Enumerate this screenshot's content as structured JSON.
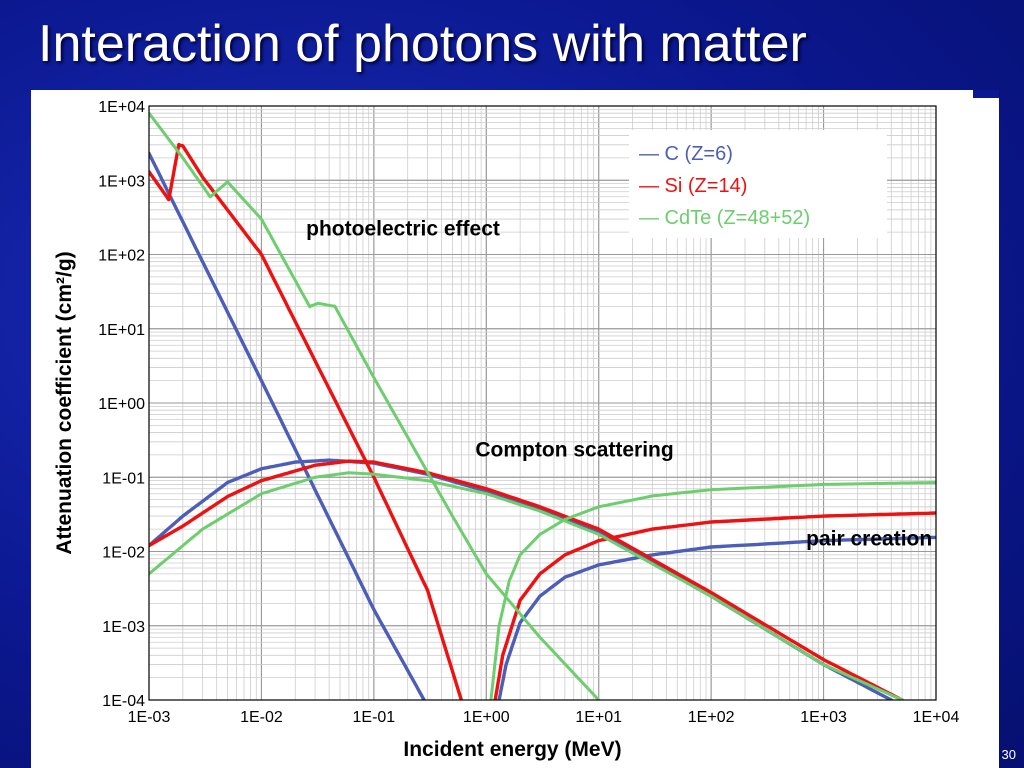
{
  "slide": {
    "title": "Interaction of photons with matter",
    "page_number": "30"
  },
  "colors": {
    "C": "#4c5eb8",
    "Si": "#ee1111",
    "CdTe": "#6cce6c"
  },
  "chart_data": {
    "type": "line",
    "title": "",
    "xlabel": "Incident energy (MeV)",
    "ylabel": "Attenuation coefficient (cm²/g)",
    "xscale": "log",
    "yscale": "log",
    "xlim": [
      0.001,
      10000
    ],
    "ylim": [
      0.0001,
      10000
    ],
    "grid": true,
    "legend_position": "top-right",
    "x_ticks": [
      "1E-03",
      "1E-02",
      "1E-01",
      "1E+00",
      "1E+01",
      "1E+02",
      "1E+03",
      "1E+04"
    ],
    "y_ticks": [
      "1E-04",
      "1E-03",
      "1E-02",
      "1E-01",
      "1E+00",
      "1E+01",
      "1E+02",
      "1E+03",
      "1E+04"
    ],
    "legend": [
      {
        "key": "C",
        "label": "— C (Z=6)"
      },
      {
        "key": "Si",
        "label": "— Si (Z=14)"
      },
      {
        "key": "CdTe",
        "label": "— CdTe (Z=48+52)"
      }
    ],
    "annotations": [
      {
        "text": "photoelectric effect",
        "x": 0.025,
        "y": 180
      },
      {
        "text": "Compton scattering",
        "x": 0.8,
        "y": 0.19
      },
      {
        "text": "pair creation",
        "x": 700,
        "y": 0.012
      }
    ],
    "series": [
      {
        "name": "C (Z=6)",
        "key": "C",
        "process": "photoelectric",
        "x": [
          0.001,
          0.01,
          0.1,
          0.28
        ],
        "y": [
          2300,
          2.0,
          0.00165,
          0.0001
        ]
      },
      {
        "name": "C (Z=6)",
        "key": "C",
        "process": "compton",
        "x": [
          0.001,
          0.002,
          0.005,
          0.01,
          0.02,
          0.04,
          0.1,
          0.3,
          1,
          3,
          10,
          100,
          1000,
          4000
        ],
        "y": [
          0.012,
          0.03,
          0.085,
          0.13,
          0.16,
          0.17,
          0.155,
          0.11,
          0.065,
          0.038,
          0.018,
          0.0025,
          0.0003,
          0.0001
        ]
      },
      {
        "name": "C (Z=6)",
        "key": "C",
        "process": "pair",
        "x": [
          1.3,
          1.5,
          2,
          3,
          5,
          10,
          30,
          100,
          1000,
          10000
        ],
        "y": [
          0.0001,
          0.0003,
          0.0011,
          0.0025,
          0.0045,
          0.0066,
          0.009,
          0.0115,
          0.014,
          0.0155
        ]
      },
      {
        "name": "Si (Z=14)",
        "key": "Si",
        "process": "photoelectric",
        "x": [
          0.001,
          0.0015,
          0.00184,
          0.002,
          0.003,
          0.01,
          0.1,
          0.3,
          0.6
        ],
        "y": [
          1300,
          550,
          3000,
          2900,
          1100,
          100,
          0.1,
          0.003,
          0.0001
        ]
      },
      {
        "name": "Si (Z=14)",
        "key": "Si",
        "process": "compton",
        "x": [
          0.001,
          0.002,
          0.005,
          0.01,
          0.03,
          0.06,
          0.1,
          0.3,
          1,
          3,
          10,
          100,
          1000,
          5000
        ],
        "y": [
          0.012,
          0.022,
          0.055,
          0.09,
          0.145,
          0.165,
          0.16,
          0.115,
          0.07,
          0.04,
          0.02,
          0.0028,
          0.00035,
          0.0001
        ]
      },
      {
        "name": "Si (Z=14)",
        "key": "Si",
        "process": "pair",
        "x": [
          1.2,
          1.4,
          2,
          3,
          5,
          10,
          30,
          100,
          1000,
          10000
        ],
        "y": [
          0.0001,
          0.0004,
          0.0022,
          0.005,
          0.009,
          0.014,
          0.02,
          0.025,
          0.03,
          0.033
        ]
      },
      {
        "name": "CdTe (Z=48+52)",
        "key": "CdTe",
        "process": "photoelectric",
        "x": [
          0.001,
          0.002,
          0.0035,
          0.005,
          0.006,
          0.01,
          0.0268,
          0.032,
          0.045,
          0.1,
          0.5,
          1,
          3,
          10
        ],
        "y": [
          8000,
          2000,
          600,
          950,
          700,
          300,
          20,
          22,
          20,
          2.2,
          0.03,
          0.005,
          0.0007,
          0.0001
        ]
      },
      {
        "name": "CdTe (Z=48+52)",
        "key": "CdTe",
        "process": "compton",
        "x": [
          0.001,
          0.003,
          0.01,
          0.03,
          0.06,
          0.1,
          0.3,
          1,
          3,
          10,
          100,
          1000,
          5000
        ],
        "y": [
          0.005,
          0.02,
          0.06,
          0.1,
          0.115,
          0.11,
          0.09,
          0.06,
          0.035,
          0.017,
          0.0025,
          0.0003,
          0.0001
        ]
      },
      {
        "name": "CdTe (Z=48+52)",
        "key": "CdTe",
        "process": "pair",
        "x": [
          1.1,
          1.3,
          1.6,
          2,
          3,
          5,
          10,
          30,
          100,
          1000,
          10000
        ],
        "y": [
          0.0001,
          0.001,
          0.004,
          0.009,
          0.017,
          0.027,
          0.04,
          0.056,
          0.068,
          0.08,
          0.085
        ]
      }
    ]
  }
}
